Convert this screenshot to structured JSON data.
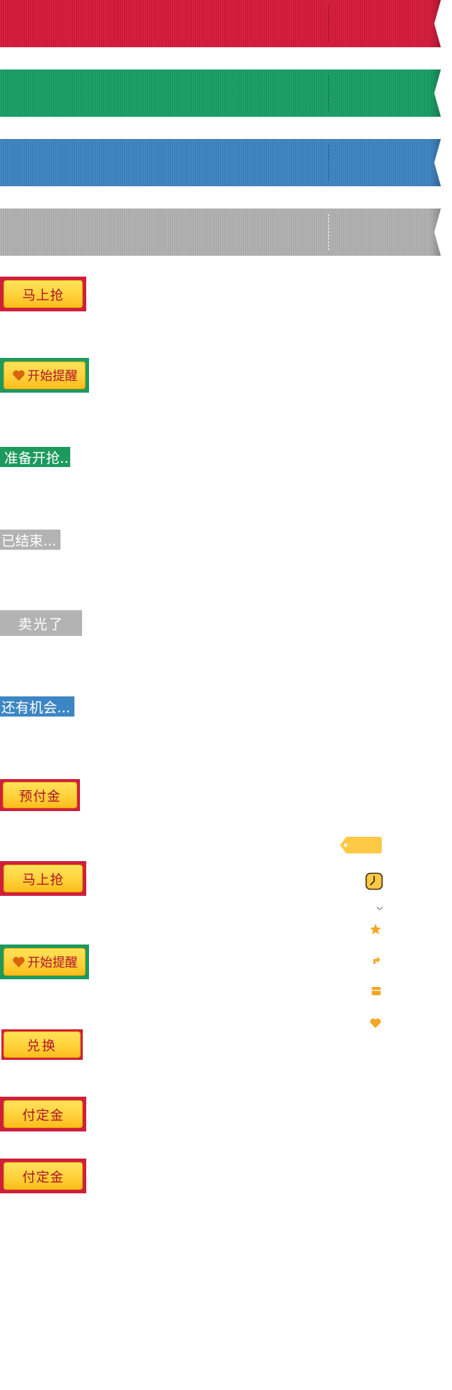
{
  "colors": {
    "red": "#d81a3c",
    "green": "#17a065",
    "blue": "#3d86c4",
    "gray": "#b3b3b3",
    "yellow": "#ffd23a",
    "orange_icon": "#f5a623"
  },
  "ribbons": [
    {
      "name": "red-ribbon",
      "color": "#d81a3c"
    },
    {
      "name": "green-ribbon",
      "color": "#17a065"
    },
    {
      "name": "blue-ribbon",
      "color": "#3d86c4"
    },
    {
      "name": "gray-ribbon",
      "color": "#b3b3b3"
    }
  ],
  "buttons": {
    "buy_now": "马上抢",
    "start_reminder": "开始提醒",
    "get_ready": "准备开抢...",
    "ended": "已结束...",
    "sold_out": "卖光了",
    "still_chance": "还有机会...",
    "prepay": "预付金",
    "buy_now_2": "马上抢",
    "start_reminder_2": "开始提醒",
    "redeem": "兑换",
    "pay_deposit": "付定金",
    "pay_deposit_2": "付定金"
  },
  "icons": [
    "tag-icon",
    "clock-icon",
    "chevron-down-icon",
    "star-icon",
    "share-arrow-icon",
    "box-icon",
    "heart-icon"
  ]
}
